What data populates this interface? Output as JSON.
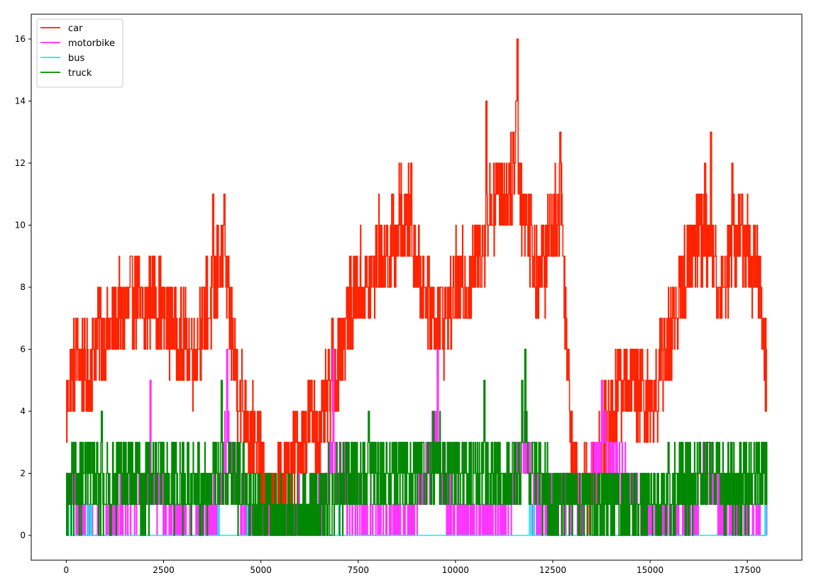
{
  "chart_data": {
    "type": "line",
    "title": "",
    "xlabel": "",
    "ylabel": "",
    "xlim": [
      -900,
      18900
    ],
    "ylim": [
      -0.8,
      16.8
    ],
    "xticks": [
      0,
      2500,
      5000,
      7500,
      10000,
      12500,
      15000,
      17500
    ],
    "yticks": [
      0,
      2,
      4,
      6,
      8,
      10,
      12,
      14,
      16
    ],
    "legend_position": "top-left",
    "grid": false,
    "series": [
      {
        "name": "car",
        "color": "#ff2200",
        "anchors": [
          [
            0,
            4
          ],
          [
            100,
            5
          ],
          [
            300,
            6
          ],
          [
            450,
            5
          ],
          [
            600,
            5
          ],
          [
            800,
            7
          ],
          [
            1000,
            6
          ],
          [
            1300,
            7
          ],
          [
            1500,
            7
          ],
          [
            1700,
            8
          ],
          [
            2000,
            7
          ],
          [
            2200,
            8
          ],
          [
            2500,
            7
          ],
          [
            2700,
            7
          ],
          [
            3000,
            6
          ],
          [
            3300,
            6
          ],
          [
            3500,
            7
          ],
          [
            3800,
            8
          ],
          [
            4000,
            9
          ],
          [
            4200,
            7
          ],
          [
            4400,
            5
          ],
          [
            4600,
            4
          ],
          [
            4800,
            3
          ],
          [
            5000,
            2
          ],
          [
            5200,
            1
          ],
          [
            5400,
            1
          ],
          [
            5600,
            2
          ],
          [
            5800,
            2
          ],
          [
            6000,
            3
          ],
          [
            6300,
            4
          ],
          [
            6500,
            3
          ],
          [
            6800,
            5
          ],
          [
            7000,
            6
          ],
          [
            7200,
            7
          ],
          [
            7500,
            8
          ],
          [
            7800,
            8
          ],
          [
            8000,
            9
          ],
          [
            8300,
            9
          ],
          [
            8500,
            10
          ],
          [
            8800,
            10
          ],
          [
            9000,
            9
          ],
          [
            9200,
            8
          ],
          [
            9500,
            7
          ],
          [
            9800,
            7
          ],
          [
            10000,
            8
          ],
          [
            10300,
            8
          ],
          [
            10600,
            9
          ],
          [
            10800,
            10
          ],
          [
            11000,
            11
          ],
          [
            11300,
            11
          ],
          [
            11500,
            12
          ],
          [
            11700,
            11
          ],
          [
            11900,
            10
          ],
          [
            12100,
            8
          ],
          [
            12300,
            9
          ],
          [
            12500,
            10
          ],
          [
            12700,
            11
          ],
          [
            12800,
            8
          ],
          [
            12900,
            5
          ],
          [
            13000,
            3
          ],
          [
            13200,
            1
          ],
          [
            13400,
            1
          ],
          [
            13600,
            2
          ],
          [
            13800,
            3
          ],
          [
            14000,
            4
          ],
          [
            14300,
            5
          ],
          [
            14600,
            5
          ],
          [
            14900,
            4
          ],
          [
            15200,
            5
          ],
          [
            15400,
            6
          ],
          [
            15600,
            7
          ],
          [
            15800,
            8
          ],
          [
            16000,
            9
          ],
          [
            16300,
            10
          ],
          [
            16600,
            9
          ],
          [
            16800,
            8
          ],
          [
            17000,
            9
          ],
          [
            17300,
            10
          ],
          [
            17600,
            9
          ],
          [
            17800,
            8
          ],
          [
            17950,
            6
          ],
          [
            18000,
            4
          ]
        ],
        "noise": 1.6,
        "spikes": [
          [
            11580,
            16
          ],
          [
            10780,
            14
          ],
          [
            11550,
            14
          ],
          [
            16550,
            13
          ],
          [
            12680,
            13
          ],
          [
            4050,
            11
          ],
          [
            3760,
            11
          ],
          [
            8850,
            12
          ],
          [
            16400,
            12
          ],
          [
            17100,
            12
          ]
        ],
        "min": 0,
        "max": 16
      },
      {
        "name": "motorbike",
        "color": "#ff33ff",
        "anchors": [
          [
            0,
            1
          ],
          [
            150,
            1.5
          ],
          [
            300,
            0.5
          ],
          [
            600,
            0
          ],
          [
            900,
            0
          ],
          [
            1300,
            0.5
          ],
          [
            1700,
            1
          ],
          [
            2000,
            1.5
          ],
          [
            2200,
            2
          ],
          [
            2500,
            1
          ],
          [
            2800,
            0.5
          ],
          [
            3100,
            0
          ],
          [
            3600,
            0
          ],
          [
            3900,
            1
          ],
          [
            4100,
            3
          ],
          [
            4300,
            2
          ],
          [
            4500,
            1
          ],
          [
            4800,
            0.5
          ],
          [
            5200,
            0
          ],
          [
            5600,
            0
          ],
          [
            5900,
            0.5
          ],
          [
            6200,
            0.5
          ],
          [
            6600,
            1
          ],
          [
            6800,
            3
          ],
          [
            7000,
            2
          ],
          [
            7300,
            1
          ],
          [
            7600,
            0.5
          ],
          [
            8000,
            0
          ],
          [
            8600,
            0
          ],
          [
            8900,
            0.5
          ],
          [
            9200,
            2
          ],
          [
            9500,
            3
          ],
          [
            9800,
            1
          ],
          [
            10200,
            0.5
          ],
          [
            10700,
            0
          ],
          [
            11200,
            0.5
          ],
          [
            11600,
            2
          ],
          [
            11800,
            3
          ],
          [
            12000,
            1
          ],
          [
            12400,
            0.5
          ],
          [
            12800,
            1.5
          ],
          [
            13200,
            1
          ],
          [
            13600,
            2
          ],
          [
            13800,
            3
          ],
          [
            14100,
            2
          ],
          [
            14400,
            1.5
          ],
          [
            14800,
            0.5
          ],
          [
            15300,
            0
          ],
          [
            15800,
            0
          ],
          [
            16200,
            1
          ],
          [
            16400,
            2.5
          ],
          [
            16700,
            1.5
          ],
          [
            17000,
            0.5
          ],
          [
            17500,
            0
          ],
          [
            18000,
            0
          ]
        ],
        "noise": 1.1,
        "spikes": [
          [
            4120,
            6
          ],
          [
            6850,
            6
          ],
          [
            9530,
            6
          ],
          [
            2150,
            5
          ],
          [
            13750,
            5
          ]
        ],
        "min": 0,
        "max": 6
      },
      {
        "name": "bus",
        "color": "#11eeee",
        "anchors": [
          [
            0,
            0
          ],
          [
            18000,
            0
          ]
        ],
        "noise": 0,
        "spikes": [
          [
            100,
            1
          ],
          [
            540,
            1
          ],
          [
            620,
            1
          ],
          [
            1950,
            1
          ],
          [
            3900,
            1
          ],
          [
            4650,
            1
          ],
          [
            7000,
            1
          ],
          [
            11900,
            1
          ],
          [
            12000,
            1
          ],
          [
            15150,
            1
          ],
          [
            17950,
            1
          ]
        ],
        "min": 0,
        "max": 1
      },
      {
        "name": "truck",
        "color": "#008800",
        "anchors": [
          [
            0,
            1
          ],
          [
            500,
            2
          ],
          [
            1000,
            1.5
          ],
          [
            1500,
            2
          ],
          [
            2000,
            1.5
          ],
          [
            2500,
            2
          ],
          [
            3000,
            1.5
          ],
          [
            3500,
            1.5
          ],
          [
            4000,
            2
          ],
          [
            4500,
            1.5
          ],
          [
            5000,
            1
          ],
          [
            5500,
            0.5
          ],
          [
            6000,
            0.5
          ],
          [
            6500,
            1
          ],
          [
            7000,
            1.5
          ],
          [
            7500,
            2
          ],
          [
            8000,
            2
          ],
          [
            8500,
            2
          ],
          [
            9000,
            2
          ],
          [
            9500,
            2.5
          ],
          [
            10000,
            2
          ],
          [
            10500,
            2
          ],
          [
            11000,
            2
          ],
          [
            11500,
            2
          ],
          [
            11800,
            3
          ],
          [
            12000,
            2
          ],
          [
            12500,
            1
          ],
          [
            13000,
            1
          ],
          [
            13500,
            1
          ],
          [
            14000,
            1
          ],
          [
            14500,
            1
          ],
          [
            15000,
            1
          ],
          [
            15500,
            1.5
          ],
          [
            16000,
            1.5
          ],
          [
            16500,
            2
          ],
          [
            17000,
            1.5
          ],
          [
            17500,
            1.5
          ],
          [
            18000,
            2.5
          ]
        ],
        "noise": 1.3,
        "spikes": [
          [
            11780,
            6
          ],
          [
            3980,
            5
          ],
          [
            10730,
            5
          ],
          [
            11700,
            5
          ],
          [
            900,
            4
          ],
          [
            7760,
            4
          ]
        ],
        "min": 0,
        "max": 6
      }
    ]
  }
}
